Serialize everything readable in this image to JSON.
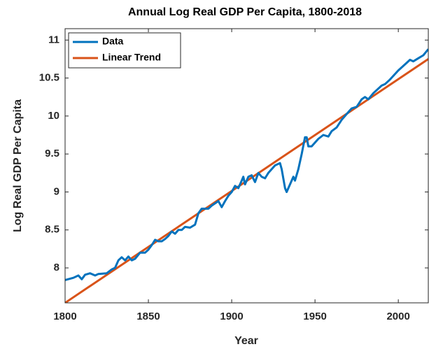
{
  "chart_data": {
    "type": "line",
    "title": "Annual Log Real GDP Per Capita, 1800-2018",
    "xlabel": "Year",
    "ylabel": "Log Real GDP Per Capita",
    "xlim": [
      1800,
      2018
    ],
    "xticks": [
      1800,
      1850,
      1900,
      1950,
      2000
    ],
    "ylim": [
      7.54,
      11.15
    ],
    "yticks": [
      8,
      {
        "value": 8.5,
        "label": "8.5"
      },
      9,
      {
        "value": 9.5,
        "label": "9.5"
      },
      10,
      {
        "value": 10.5,
        "label": "10.5"
      },
      11
    ],
    "grid": false,
    "legend": "northwest",
    "series": [
      {
        "name": "Data",
        "color": "#0072bd",
        "x": [
          1800,
          1805,
          1808,
          1810,
          1812,
          1815,
          1818,
          1820,
          1825,
          1828,
          1830,
          1832,
          1834,
          1836,
          1838,
          1840,
          1842,
          1845,
          1848,
          1850,
          1852,
          1854,
          1856,
          1858,
          1860,
          1862,
          1864,
          1866,
          1868,
          1870,
          1872,
          1875,
          1878,
          1880,
          1882,
          1884,
          1886,
          1888,
          1890,
          1892,
          1894,
          1896,
          1898,
          1900,
          1902,
          1904,
          1906,
          1907,
          1908,
          1910,
          1912,
          1914,
          1916,
          1918,
          1920,
          1922,
          1924,
          1926,
          1929,
          1930,
          1932,
          1933,
          1935,
          1937,
          1938,
          1940,
          1942,
          1944,
          1945,
          1946,
          1948,
          1950,
          1952,
          1955,
          1958,
          1960,
          1963,
          1966,
          1970,
          1972,
          1975,
          1978,
          1980,
          1982,
          1985,
          1990,
          1992,
          1995,
          2000,
          2005,
          2007,
          2009,
          2012,
          2015,
          2018
        ],
        "values": [
          7.84,
          7.87,
          7.9,
          7.85,
          7.91,
          7.93,
          7.9,
          7.92,
          7.93,
          7.98,
          8.0,
          8.1,
          8.14,
          8.1,
          8.15,
          8.1,
          8.12,
          8.2,
          8.2,
          8.24,
          8.3,
          8.37,
          8.35,
          8.35,
          8.38,
          8.42,
          8.48,
          8.45,
          8.5,
          8.5,
          8.54,
          8.53,
          8.57,
          8.72,
          8.78,
          8.78,
          8.78,
          8.82,
          8.85,
          8.88,
          8.8,
          8.88,
          8.95,
          9.0,
          9.08,
          9.05,
          9.15,
          9.2,
          9.1,
          9.2,
          9.22,
          9.13,
          9.25,
          9.2,
          9.18,
          9.25,
          9.3,
          9.35,
          9.38,
          9.3,
          9.05,
          9.0,
          9.1,
          9.2,
          9.15,
          9.3,
          9.5,
          9.72,
          9.72,
          9.6,
          9.6,
          9.65,
          9.7,
          9.75,
          9.73,
          9.8,
          9.85,
          9.95,
          10.05,
          10.1,
          10.12,
          10.22,
          10.25,
          10.22,
          10.3,
          10.4,
          10.42,
          10.48,
          10.6,
          10.7,
          10.74,
          10.72,
          10.76,
          10.8,
          10.88
        ]
      },
      {
        "name": "Linear Trend",
        "color": "#d95319",
        "x": [
          1800,
          2018
        ],
        "values": [
          7.54,
          10.75
        ]
      }
    ]
  }
}
